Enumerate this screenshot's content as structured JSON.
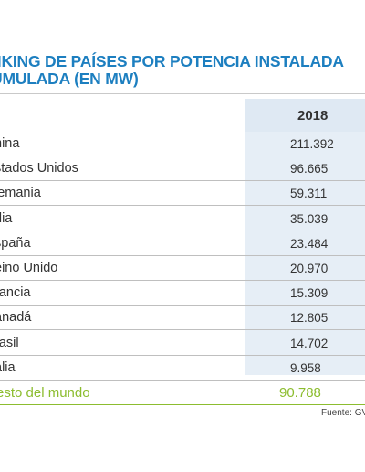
{
  "title_lines": [
    "NKING DE PAÍSES POR POTENCIA INSTALADA",
    "UMULADA (EN MW)"
  ],
  "chart_data": {
    "type": "table",
    "title": "NKING DE PAÍSES POR POTENCIA INSTALADA UMULADA (EN MW)",
    "columns": [
      "2018"
    ],
    "rows": [
      {
        "label": "hina",
        "value": "211.392"
      },
      {
        "label": "stados Unidos",
        "value": "96.665"
      },
      {
        "label": "lemania",
        "value": "59.311"
      },
      {
        "label": "dia",
        "value": "35.039"
      },
      {
        "label": "spaña",
        "value": "23.484"
      },
      {
        "label": "eino Unido",
        "value": "20.970"
      },
      {
        "label": "rancia",
        "value": "15.309"
      },
      {
        "label": "anadá",
        "value": "12.805"
      },
      {
        "label": "rasil",
        "value": "14.702"
      },
      {
        "label": "alia",
        "value": "9.958"
      }
    ],
    "total": {
      "label": "esto del mundo",
      "value": "90.788"
    }
  },
  "source": "Fuente: GV"
}
